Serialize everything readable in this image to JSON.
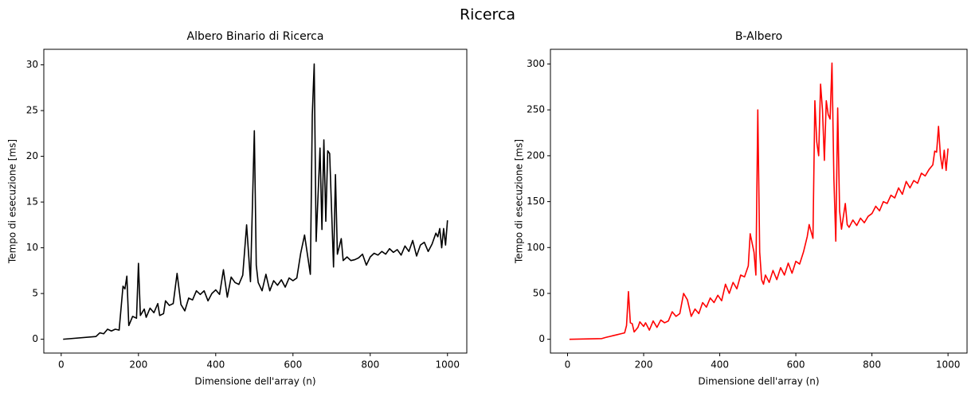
{
  "title": "Ricerca",
  "chart_data": [
    {
      "type": "line",
      "title": "Albero Binario di Ricerca",
      "x_label": "Dimensione dell'array (n)",
      "y_label": "Tempo di esecuzione [ms]",
      "x": [
        5,
        90,
        100,
        110,
        120,
        130,
        140,
        150,
        160,
        165,
        170,
        175,
        185,
        195,
        200,
        205,
        215,
        220,
        230,
        240,
        250,
        255,
        265,
        270,
        280,
        290,
        300,
        310,
        320,
        330,
        340,
        350,
        360,
        370,
        380,
        390,
        400,
        410,
        420,
        430,
        440,
        450,
        460,
        470,
        480,
        490,
        500,
        505,
        510,
        520,
        530,
        540,
        550,
        560,
        570,
        580,
        590,
        600,
        610,
        620,
        630,
        645,
        650,
        655,
        660,
        670,
        675,
        680,
        685,
        690,
        695,
        705,
        710,
        715,
        725,
        730,
        740,
        750,
        760,
        770,
        780,
        790,
        800,
        810,
        820,
        830,
        840,
        850,
        860,
        870,
        880,
        890,
        900,
        910,
        920,
        930,
        940,
        950,
        960,
        970,
        975,
        980,
        985,
        990,
        995,
        1000
      ],
      "series": [
        {
          "name": "Albero Binario di Ricerca",
          "color": "#000000",
          "values": [
            0,
            0.3,
            0.7,
            0.6,
            1.1,
            0.9,
            1.1,
            1.0,
            5.8,
            5.5,
            6.9,
            1.5,
            2.5,
            2.3,
            8.3,
            2.6,
            3.3,
            2.4,
            3.4,
            2.9,
            3.9,
            2.6,
            2.8,
            4.2,
            3.7,
            3.9,
            7.2,
            3.8,
            3.1,
            4.5,
            4.3,
            5.3,
            4.9,
            5.3,
            4.2,
            5.0,
            5.4,
            4.9,
            7.6,
            4.6,
            6.8,
            6.2,
            6.0,
            7.0,
            12.5,
            6.3,
            22.8,
            8.1,
            6.2,
            5.3,
            7.1,
            5.3,
            6.4,
            5.9,
            6.5,
            5.7,
            6.7,
            6.4,
            6.7,
            9.4,
            11.4,
            7.1,
            24.5,
            30.1,
            10.7,
            20.9,
            12.0,
            21.8,
            12.9,
            20.6,
            20.3,
            7.9,
            18.0,
            9.3,
            11.0,
            8.6,
            9.0,
            8.6,
            8.7,
            8.9,
            9.3,
            8.1,
            9.0,
            9.4,
            9.2,
            9.6,
            9.3,
            9.9,
            9.5,
            9.8,
            9.2,
            10.2,
            9.6,
            10.8,
            9.1,
            10.3,
            10.6,
            9.6,
            10.4,
            11.6,
            11.2,
            12.1,
            10.0,
            12.1,
            10.3,
            13.0
          ]
        }
      ],
      "xlim": [
        -45,
        1050
      ],
      "xticks": [
        0,
        200,
        400,
        600,
        800,
        1000
      ],
      "ylim": [
        -1.51,
        31.7
      ],
      "yticks": [
        0,
        5,
        10,
        15,
        20,
        25,
        30
      ]
    },
    {
      "type": "line",
      "title": "B-Albero",
      "x_label": "Dimensione dell'array (n)",
      "y_label": "Tempo di esecuzione [ms]",
      "x": [
        5,
        90,
        100,
        110,
        120,
        130,
        140,
        150,
        155,
        160,
        165,
        170,
        175,
        185,
        190,
        200,
        205,
        215,
        225,
        235,
        245,
        255,
        265,
        275,
        285,
        295,
        305,
        315,
        325,
        335,
        345,
        355,
        365,
        375,
        385,
        395,
        405,
        415,
        425,
        435,
        445,
        455,
        465,
        475,
        480,
        490,
        495,
        500,
        505,
        510,
        515,
        520,
        530,
        540,
        550,
        560,
        570,
        580,
        590,
        600,
        610,
        620,
        630,
        635,
        645,
        650,
        655,
        660,
        665,
        670,
        675,
        680,
        685,
        690,
        695,
        700,
        705,
        710,
        715,
        720,
        730,
        735,
        740,
        750,
        760,
        770,
        780,
        790,
        800,
        810,
        820,
        830,
        840,
        850,
        860,
        870,
        880,
        890,
        900,
        910,
        920,
        930,
        940,
        950,
        960,
        965,
        970,
        975,
        980,
        985,
        990,
        995,
        1000
      ],
      "series": [
        {
          "name": "B-Albero",
          "color": "#ff0000",
          "values": [
            0,
            0.8,
            2,
            3,
            4,
            5,
            6,
            7,
            15,
            52,
            18,
            17,
            8,
            13,
            19,
            14,
            18,
            10,
            20,
            13,
            21,
            18,
            20,
            30,
            25,
            28,
            50,
            43,
            25,
            33,
            28,
            40,
            35,
            45,
            40,
            48,
            42,
            60,
            50,
            62,
            55,
            70,
            68,
            80,
            115,
            95,
            70,
            250,
            95,
            65,
            60,
            70,
            62,
            75,
            65,
            78,
            70,
            83,
            72,
            85,
            82,
            95,
            112,
            125,
            110,
            260,
            215,
            200,
            278,
            250,
            195,
            260,
            245,
            240,
            301,
            175,
            107,
            252,
            140,
            120,
            148,
            125,
            122,
            130,
            124,
            132,
            127,
            134,
            137,
            145,
            140,
            150,
            148,
            157,
            154,
            165,
            158,
            172,
            165,
            173,
            170,
            181,
            178,
            185,
            190,
            205,
            204,
            232,
            200,
            186,
            206,
            184,
            208
          ]
        }
      ],
      "xlim": [
        -45,
        1050
      ],
      "xticks": [
        0,
        200,
        400,
        600,
        800,
        1000
      ],
      "ylim": [
        -15,
        316
      ],
      "yticks": [
        0,
        50,
        100,
        150,
        200,
        250,
        300
      ]
    }
  ]
}
